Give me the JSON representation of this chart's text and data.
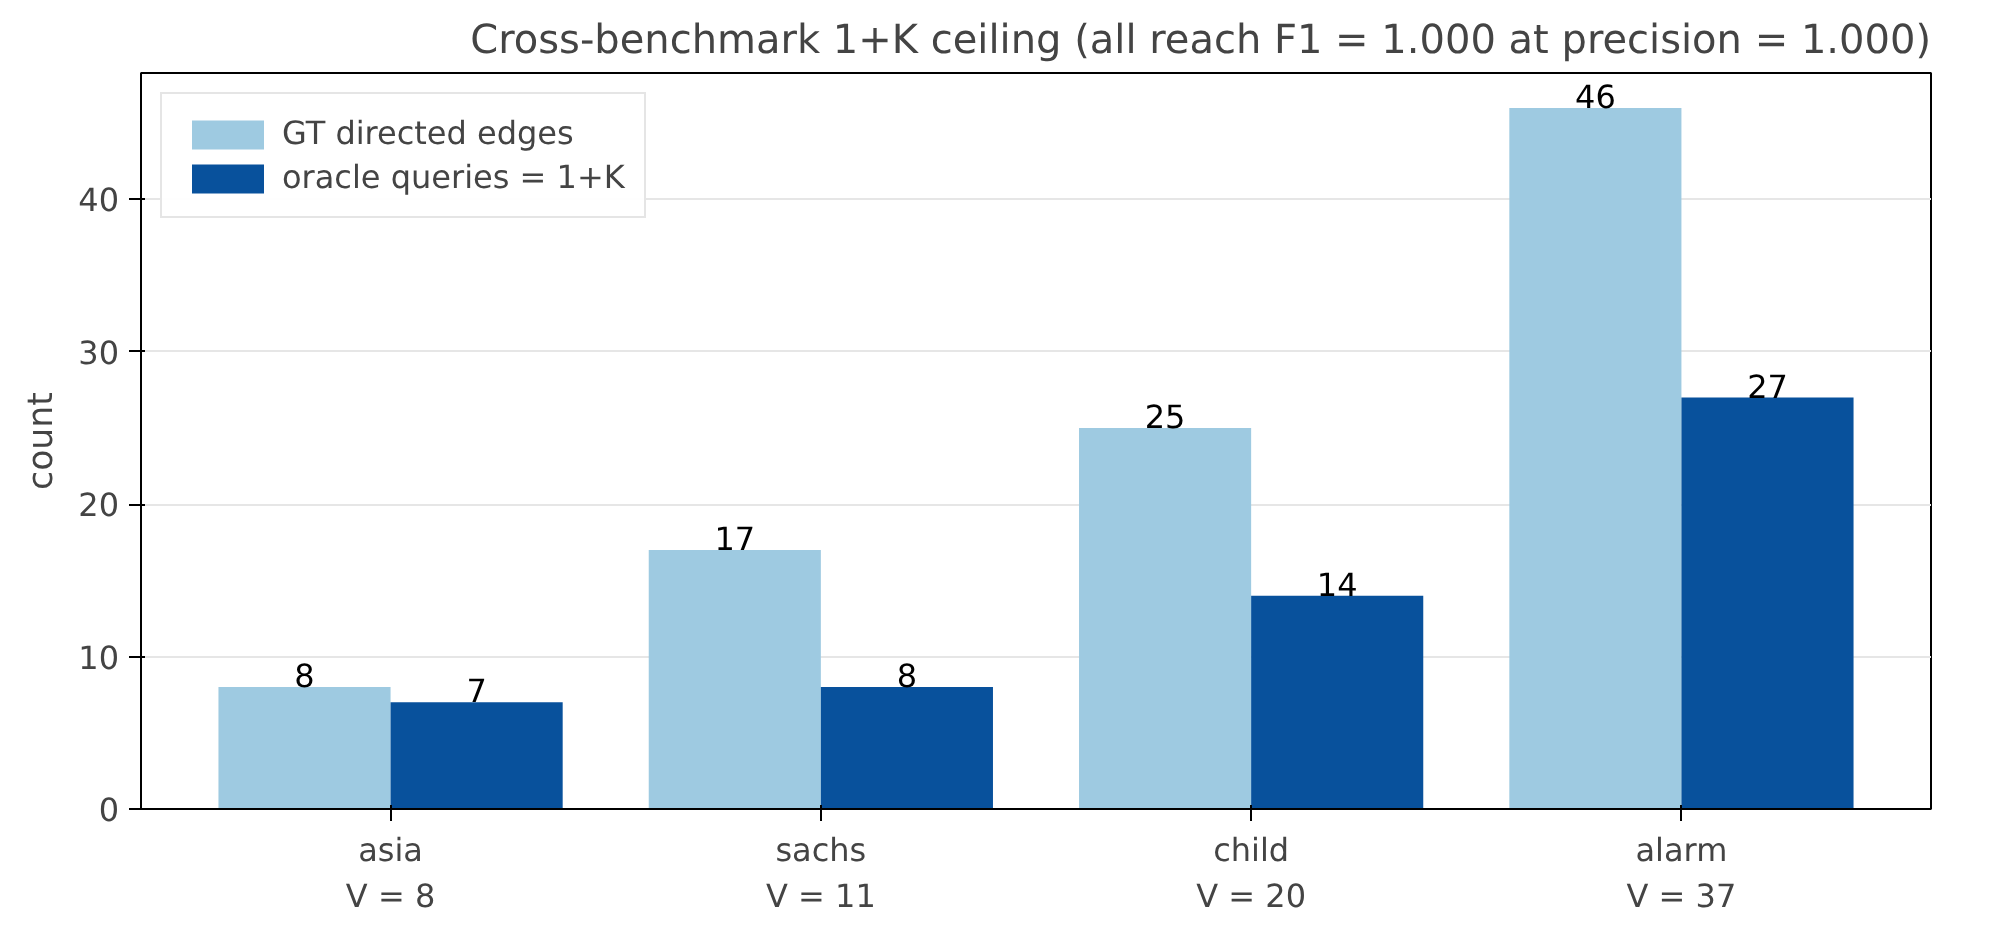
{
  "chart_data": {
    "type": "bar",
    "title": "Cross-benchmark 1+K ceiling (all reach F1 = 1.000 at precision = 1.000)",
    "ylabel": "count",
    "categories": [
      "asia\nV = 8",
      "sachs\nV = 11",
      "child\nV = 20",
      "alarm\nV = 37"
    ],
    "series": [
      {
        "name": "GT directed edges",
        "color": "#9ecae1",
        "values": [
          8,
          17,
          25,
          46
        ]
      },
      {
        "name": "oracle queries = 1+K",
        "color": "#08519c",
        "values": [
          7,
          8,
          14,
          27
        ]
      }
    ],
    "ylim": [
      0,
      48.3
    ],
    "yticks": [
      0,
      10,
      20,
      30,
      40
    ],
    "grid": "y",
    "legend": "top left",
    "data_labels": true
  }
}
